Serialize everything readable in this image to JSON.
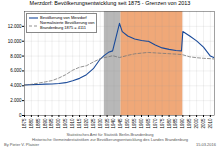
{
  "chart_data": {
    "type": "line",
    "title": "Merzdorf: Bevölkerungsentwicklung seit 1875 - Grenzen von 2013",
    "x": [
      1875,
      1880,
      1885,
      1890,
      1895,
      1900,
      1905,
      1910,
      1915,
      1920,
      1925,
      1930,
      1933,
      1936,
      1939,
      1944,
      1946,
      1950,
      1955,
      1960,
      1964,
      1965,
      1970,
      1975,
      1980,
      1985,
      1989,
      1990,
      1995,
      2000,
      2005,
      2010,
      2013
    ],
    "series": [
      {
        "name": "Bevölkerung von Merzdorf",
        "color": "#1a4a99",
        "line_style": "solid",
        "values": [
          4100,
          4150,
          4180,
          4220,
          4250,
          4300,
          4420,
          4680,
          5000,
          5500,
          6300,
          7600,
          8100,
          8500,
          8700,
          12400,
          11300,
          10700,
          10300,
          10100,
          10000,
          10000,
          9500,
          9100,
          8900,
          8750,
          8700,
          11300,
          10700,
          10050,
          9200,
          8000,
          7750
        ]
      },
      {
        "name": "Normalisierte Bevölkerung von\nBrandenburg 1875 = 4111",
        "color": "#777777",
        "line_style": "dashed",
        "values": [
          4100,
          4200,
          4350,
          4520,
          4700,
          5050,
          5500,
          6100,
          6500,
          6700,
          7200,
          7650,
          7800,
          7900,
          8050,
          7800,
          7900,
          8100,
          8300,
          8400,
          8480,
          8480,
          8430,
          8370,
          8320,
          8260,
          8210,
          8170,
          7900,
          7780,
          7700,
          7650,
          7600
        ]
      }
    ],
    "xlim": [
      1875,
      2013
    ],
    "xticks": [
      1875,
      1880,
      1885,
      1890,
      1895,
      1900,
      1905,
      1910,
      1915,
      1920,
      1925,
      1930,
      1935,
      1940,
      1945,
      1950,
      1955,
      1960,
      1965,
      1970,
      1975,
      1980,
      1985,
      1990,
      1995,
      2000,
      2005,
      2010
    ],
    "ylim": [
      0,
      14000
    ],
    "yticks": [
      0,
      {
        "value": 2000,
        "label": "2.000"
      },
      {
        "value": 4000,
        "label": "4.000"
      },
      {
        "value": 6000,
        "label": "6.000"
      },
      {
        "value": 8000,
        "label": "8.000"
      },
      {
        "value": 10000,
        "label": "10.000"
      },
      {
        "value": 12000,
        "label": "12.000"
      }
    ],
    "grid": true,
    "legend": "upper left",
    "shaded_spans": [
      {
        "x0": 1933,
        "x1": 1945,
        "color": "#b8b8b8"
      },
      {
        "x0": 1945,
        "x1": 1990,
        "color": "#f0a878"
      }
    ],
    "annotations": [
      "Statistisches Amt für Statistik Berlin-Brandenburg",
      "Historische Gemeindestatistiken zur Bevölkerungsentwicklung des Landes Brandenburg",
      "By Pieter V. Plaisier",
      "15.03.2016"
    ]
  }
}
